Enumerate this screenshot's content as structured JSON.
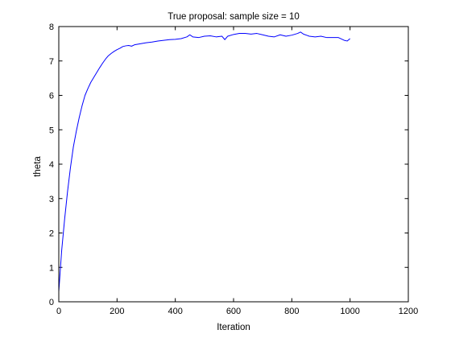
{
  "chart_data": {
    "type": "line",
    "title": "True proposal: sample size = 10",
    "xlabel": "Iteration",
    "ylabel": "theta",
    "xlim": [
      0,
      1200
    ],
    "ylim": [
      0,
      8
    ],
    "xticks": [
      0,
      200,
      400,
      600,
      800,
      1000,
      1200
    ],
    "yticks": [
      0,
      1,
      2,
      3,
      4,
      5,
      6,
      7,
      8
    ],
    "grid": false,
    "box": true,
    "series": [
      {
        "color": "#0000ff",
        "x": [
          0,
          5,
          10,
          20,
          30,
          40,
          50,
          60,
          70,
          80,
          90,
          100,
          110,
          120,
          130,
          140,
          150,
          160,
          170,
          180,
          190,
          200,
          210,
          220,
          230,
          240,
          250,
          260,
          280,
          300,
          320,
          340,
          360,
          380,
          400,
          420,
          440,
          450,
          460,
          480,
          500,
          520,
          540,
          560,
          570,
          580,
          600,
          620,
          640,
          660,
          680,
          700,
          720,
          740,
          760,
          780,
          800,
          820,
          830,
          840,
          860,
          880,
          900,
          920,
          940,
          960,
          980,
          990,
          1000
        ],
        "y": [
          0.3,
          0.9,
          1.5,
          2.4,
          3.2,
          3.9,
          4.5,
          4.95,
          5.35,
          5.7,
          6.0,
          6.2,
          6.38,
          6.52,
          6.66,
          6.8,
          6.93,
          7.05,
          7.15,
          7.22,
          7.28,
          7.33,
          7.37,
          7.42,
          7.44,
          7.45,
          7.43,
          7.47,
          7.5,
          7.53,
          7.55,
          7.58,
          7.6,
          7.62,
          7.63,
          7.65,
          7.7,
          7.76,
          7.7,
          7.68,
          7.72,
          7.73,
          7.7,
          7.72,
          7.62,
          7.72,
          7.77,
          7.8,
          7.8,
          7.78,
          7.8,
          7.76,
          7.72,
          7.7,
          7.76,
          7.72,
          7.75,
          7.8,
          7.84,
          7.78,
          7.72,
          7.7,
          7.72,
          7.68,
          7.68,
          7.68,
          7.6,
          7.58,
          7.65
        ]
      }
    ]
  }
}
